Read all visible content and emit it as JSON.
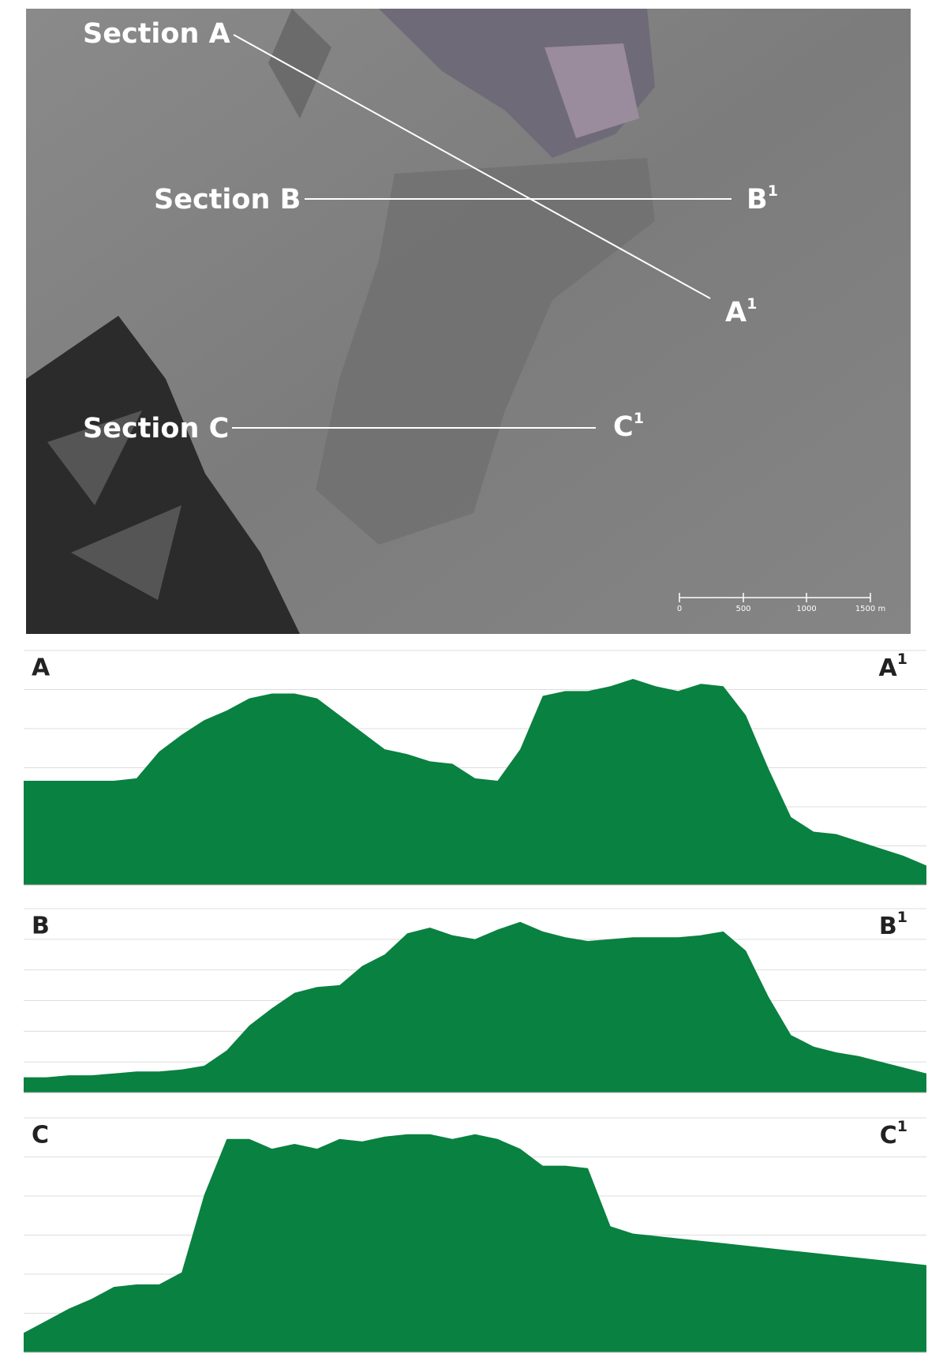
{
  "map": {
    "sections": [
      {
        "label": "Section A",
        "end": "A",
        "end_sup": "1"
      },
      {
        "label": "Section B",
        "end": "B",
        "end_sup": "1"
      },
      {
        "label": "Section C",
        "end": "C",
        "end_sup": "1"
      }
    ],
    "scale_bar": [
      "0",
      "500",
      "1000",
      "1500 m"
    ]
  },
  "profiles": [
    {
      "start": "A",
      "end": "A",
      "end_sup": "1",
      "color": "#098140",
      "ylim": [
        0,
        100
      ],
      "values": [
        43,
        43,
        43,
        43,
        43,
        44,
        55,
        62,
        68,
        72,
        77,
        79,
        79,
        77,
        70,
        63,
        56,
        54,
        51,
        50,
        44,
        43,
        56,
        78,
        80,
        80,
        82,
        85,
        82,
        80,
        83,
        82,
        70,
        48,
        28,
        22,
        21,
        18,
        15,
        12,
        8
      ]
    },
    {
      "start": "B",
      "end": "B",
      "end_sup": "1",
      "color": "#098140",
      "ylim": [
        0,
        100
      ],
      "values": [
        8,
        8,
        9,
        9,
        10,
        11,
        11,
        12,
        14,
        22,
        35,
        44,
        52,
        55,
        56,
        66,
        72,
        83,
        86,
        82,
        80,
        85,
        89,
        84,
        81,
        79,
        80,
        81,
        81,
        81,
        82,
        84,
        74,
        50,
        30,
        24,
        21,
        19,
        16,
        13,
        10
      ]
    },
    {
      "start": "C",
      "end": "C",
      "end_sup": "1",
      "color": "#098140",
      "ylim": [
        0,
        100
      ],
      "values": [
        8,
        13,
        18,
        22,
        27,
        28,
        28,
        33,
        65,
        88,
        88,
        84,
        86,
        84,
        88,
        87,
        89,
        90,
        90,
        88,
        90,
        88,
        84,
        77,
        77,
        76,
        52,
        49,
        48,
        47,
        46,
        45,
        44,
        43,
        42,
        41,
        40,
        39,
        38,
        37,
        36
      ]
    }
  ]
}
